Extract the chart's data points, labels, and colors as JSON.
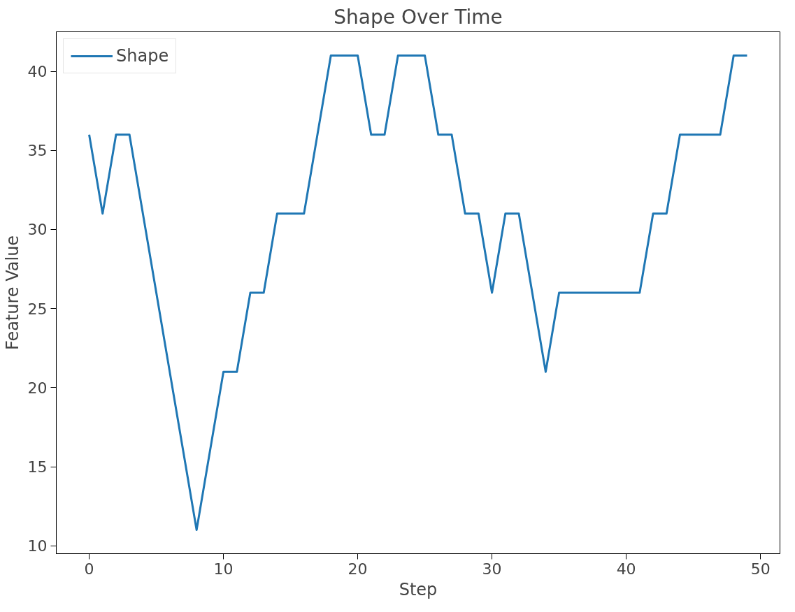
{
  "chart_data": {
    "type": "line",
    "title": "Shape Over Time",
    "xlabel": "Step",
    "ylabel": "Feature Value",
    "x": [
      0,
      1,
      2,
      3,
      4,
      5,
      6,
      7,
      8,
      9,
      10,
      11,
      12,
      13,
      14,
      15,
      16,
      17,
      18,
      19,
      20,
      21,
      22,
      23,
      24,
      25,
      26,
      27,
      28,
      29,
      30,
      31,
      32,
      33,
      34,
      35,
      36,
      37,
      38,
      39,
      40,
      41,
      42,
      43,
      44,
      45,
      46,
      47,
      48,
      49
    ],
    "series": [
      {
        "name": "Shape",
        "color": "#1f77b4",
        "values": [
          36,
          31,
          36,
          36,
          31,
          26,
          21,
          16,
          11,
          16,
          21,
          21,
          26,
          26,
          31,
          31,
          31,
          36,
          41,
          41,
          41,
          36,
          36,
          41,
          41,
          41,
          36,
          36,
          31,
          31,
          26,
          31,
          31,
          26,
          21,
          26,
          26,
          26,
          26,
          26,
          26,
          26,
          31,
          31,
          36,
          36,
          36,
          36,
          41,
          41
        ]
      }
    ],
    "xlim": [
      -2.45,
      51.45
    ],
    "ylim": [
      9.5,
      42.5
    ],
    "xticks": [
      0,
      10,
      20,
      30,
      40,
      50
    ],
    "yticks": [
      10,
      15,
      20,
      25,
      30,
      35,
      40
    ],
    "legend": "top left",
    "grid": false,
    "marker": "none",
    "line_style": "solid"
  }
}
